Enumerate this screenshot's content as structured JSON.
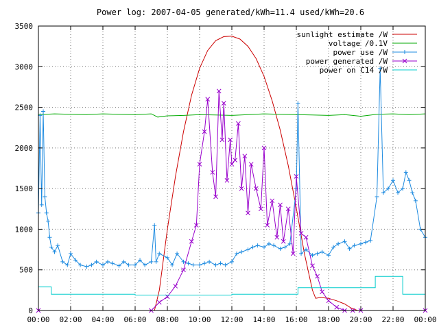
{
  "chart_data": {
    "type": "line",
    "title": "Power log: 2007-04-05 generated/kWh=11.4 used/kWh=20.6",
    "xlabel": "",
    "ylabel": "",
    "x_ticks": [
      "00:00",
      "02:00",
      "04:00",
      "06:00",
      "08:00",
      "10:00",
      "12:00",
      "14:00",
      "16:00",
      "18:00",
      "20:00",
      "22:00",
      "00:00"
    ],
    "y_ticks": [
      "0",
      "500",
      "1000",
      "1500",
      "2000",
      "2500",
      "3000",
      "3500"
    ],
    "xlim_hours": [
      0,
      24
    ],
    "ylim": [
      0,
      3500
    ],
    "grid": true,
    "legend_position": "top-right",
    "series": [
      {
        "name": "sunlight estimate /W",
        "color": "#cc0000",
        "marker": "none",
        "x": [
          0,
          7.2,
          7.5,
          8,
          8.5,
          9,
          9.5,
          10,
          10.5,
          11,
          11.5,
          12,
          12.5,
          13,
          13.5,
          14,
          14.5,
          15,
          15.5,
          16,
          16.5,
          17,
          17.2,
          17.5,
          18,
          18.5,
          19,
          19.4,
          19.8,
          20,
          24
        ],
        "values": [
          0,
          0,
          250,
          1000,
          1650,
          2200,
          2650,
          2980,
          3200,
          3320,
          3370,
          3375,
          3340,
          3250,
          3100,
          2880,
          2580,
          2220,
          1780,
          1260,
          700,
          250,
          150,
          160,
          150,
          120,
          80,
          30,
          0,
          0,
          0
        ]
      },
      {
        "name": "voltage /0.1V",
        "color": "#00aa00",
        "marker": "none",
        "x": [
          0,
          1,
          2,
          3,
          4,
          5,
          6,
          7,
          7.4,
          8,
          9,
          10,
          11,
          12,
          13,
          14,
          15,
          16,
          17,
          18,
          19,
          20,
          21,
          22,
          23,
          24
        ],
        "values": [
          2410,
          2420,
          2415,
          2410,
          2420,
          2415,
          2410,
          2420,
          2380,
          2395,
          2400,
          2410,
          2405,
          2400,
          2410,
          2420,
          2415,
          2410,
          2405,
          2400,
          2410,
          2390,
          2415,
          2420,
          2410,
          2420
        ]
      },
      {
        "name": "power use /W",
        "color": "#1e8be0",
        "marker": "+",
        "x": [
          0,
          0.1,
          0.2,
          0.3,
          0.4,
          0.5,
          0.6,
          0.7,
          0.8,
          1.0,
          1.2,
          1.5,
          1.8,
          2.0,
          2.3,
          2.6,
          3.0,
          3.3,
          3.6,
          4.0,
          4.3,
          4.6,
          5.0,
          5.3,
          5.6,
          6.0,
          6.3,
          6.6,
          7.0,
          7.2,
          7.3,
          7.5,
          8.0,
          8.3,
          8.6,
          9.0,
          9.3,
          9.6,
          10.0,
          10.3,
          10.6,
          11.0,
          11.3,
          11.6,
          12.0,
          12.3,
          12.6,
          13.0,
          13.3,
          13.6,
          14.0,
          14.3,
          14.6,
          15.0,
          15.3,
          15.6,
          16.0,
          16.1,
          16.3,
          16.6,
          17.0,
          17.3,
          17.6,
          18.0,
          18.3,
          18.6,
          19.0,
          19.3,
          19.6,
          20.0,
          20.3,
          20.6,
          21.0,
          21.2,
          21.4,
          21.7,
          22.0,
          22.3,
          22.6,
          22.8,
          23.0,
          23.2,
          23.4,
          23.7,
          24.0
        ],
        "values": [
          1200,
          2400,
          1300,
          2450,
          1400,
          1200,
          1100,
          900,
          780,
          720,
          800,
          600,
          560,
          700,
          620,
          560,
          540,
          560,
          600,
          560,
          600,
          580,
          550,
          600,
          560,
          560,
          620,
          560,
          600,
          1050,
          600,
          700,
          650,
          560,
          700,
          600,
          580,
          560,
          560,
          580,
          600,
          560,
          580,
          560,
          600,
          700,
          720,
          750,
          780,
          800,
          780,
          820,
          800,
          760,
          780,
          820,
          1500,
          2550,
          700,
          750,
          680,
          700,
          720,
          680,
          780,
          820,
          850,
          760,
          800,
          820,
          840,
          860,
          1400,
          2980,
          1450,
          1500,
          1600,
          1450,
          1500,
          1700,
          1600,
          1450,
          1350,
          1000,
          900
        ]
      },
      {
        "name": "power generated /W",
        "color": "#9900cc",
        "marker": "x",
        "x": [
          0,
          7.0,
          7.5,
          8.0,
          8.5,
          9.0,
          9.5,
          9.8,
          10.0,
          10.3,
          10.5,
          10.8,
          11.0,
          11.2,
          11.4,
          11.5,
          11.7,
          11.9,
          12.0,
          12.2,
          12.4,
          12.6,
          12.8,
          13.0,
          13.2,
          13.5,
          13.8,
          14.0,
          14.2,
          14.5,
          14.8,
          15.0,
          15.2,
          15.5,
          15.8,
          16.0,
          16.3,
          16.6,
          17.0,
          17.3,
          17.6,
          18.0,
          18.5,
          19.0,
          19.5,
          20.0,
          24
        ],
        "values": [
          0,
          0,
          100,
          170,
          300,
          500,
          850,
          1050,
          1800,
          2200,
          2600,
          1700,
          1400,
          2700,
          2100,
          2550,
          1600,
          2100,
          1800,
          1850,
          2300,
          1500,
          1900,
          1200,
          1800,
          1500,
          1250,
          2000,
          1050,
          1350,
          900,
          1300,
          850,
          1250,
          700,
          1650,
          950,
          900,
          550,
          420,
          230,
          120,
          40,
          0,
          0,
          0,
          0
        ]
      },
      {
        "name": "power on C14 /W",
        "color": "#00cccc",
        "marker": "none",
        "x": [
          0,
          0.8,
          0.8,
          6.0,
          6.0,
          12.0,
          12.0,
          16.1,
          16.1,
          20.9,
          20.9,
          22.6,
          22.6,
          24
        ],
        "values": [
          290,
          290,
          200,
          200,
          190,
          190,
          200,
          200,
          280,
          280,
          420,
          420,
          200,
          200
        ]
      }
    ]
  }
}
